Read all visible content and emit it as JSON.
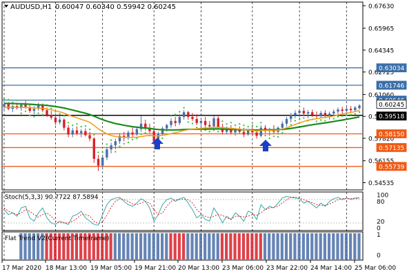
{
  "header": {
    "symbol": "AUDUSD,H1",
    "ohlc": "0.60047 0.60340 0.59942 0.60245"
  },
  "colors": {
    "bull": "#4a6ea8",
    "bear": "#d8202a",
    "ma_fast": "#f0a020",
    "ma_slow": "#1a8a1a",
    "psar": "#3ac83a",
    "level_blue": "#3b6fa8",
    "level_orange": "#f05a14",
    "stoch_main": "#3aa7a7",
    "stoch_signal": "#e02020",
    "arrow": "#1a40c8"
  },
  "price_axis": {
    "ticks": [
      "0.67630",
      "0.65965",
      "0.64345",
      "0.62725",
      "0.61060",
      "0.59440",
      "0.57820",
      "0.56155",
      "0.54535"
    ],
    "tags": [
      {
        "label": "0.63034",
        "kind": "blue"
      },
      {
        "label": "0.61746",
        "kind": "blue"
      },
      {
        "label": "0.60646",
        "kind": "blue"
      },
      {
        "label": "0.60245",
        "kind": "current"
      },
      {
        "label": "0.59518",
        "kind": "black"
      },
      {
        "label": "0.58150",
        "kind": "orange"
      },
      {
        "label": "0.57135",
        "kind": "orange"
      },
      {
        "label": "0.55739",
        "kind": "orange"
      }
    ]
  },
  "stoch_panel": {
    "label": "Stoch(5,3,3) 90.7722 87.5894",
    "ticks": [
      "100",
      "80",
      "20",
      "0"
    ]
  },
  "trend_panel": {
    "label": "Flat Trend V2(Current Timeframe)",
    "ticks": [
      "1",
      "0"
    ]
  },
  "time_axis": {
    "labels": [
      "17 Mar 2020",
      "18 Mar 13:00",
      "19 Mar 05:00",
      "19 Mar 21:00",
      "20 Mar 13:00",
      "23 Mar 06:00",
      "23 Mar 22:00",
      "24 Mar 14:00",
      "25 Mar 06:00"
    ]
  },
  "chart_data": {
    "type": "candlestick",
    "symbol": "AUDUSD",
    "timeframe": "H1",
    "ylim": [
      0.5405,
      0.6785
    ],
    "levels": [
      0.63034,
      0.61746,
      0.60646,
      0.59518,
      0.5815,
      0.57135,
      0.55739
    ],
    "candles": [
      {
        "o": 0.6015,
        "h": 0.6055,
        "l": 0.5995,
        "c": 0.6035
      },
      {
        "o": 0.6035,
        "h": 0.605,
        "l": 0.599,
        "c": 0.6
      },
      {
        "o": 0.6,
        "h": 0.603,
        "l": 0.5975,
        "c": 0.602
      },
      {
        "o": 0.602,
        "h": 0.6045,
        "l": 0.5995,
        "c": 0.6005
      },
      {
        "o": 0.6005,
        "h": 0.604,
        "l": 0.5985,
        "c": 0.603
      },
      {
        "o": 0.603,
        "h": 0.606,
        "l": 0.6,
        "c": 0.601
      },
      {
        "o": 0.601,
        "h": 0.6035,
        "l": 0.597,
        "c": 0.5985
      },
      {
        "o": 0.5985,
        "h": 0.602,
        "l": 0.596,
        "c": 0.6
      },
      {
        "o": 0.6,
        "h": 0.6045,
        "l": 0.5985,
        "c": 0.6025
      },
      {
        "o": 0.6025,
        "h": 0.604,
        "l": 0.5975,
        "c": 0.599
      },
      {
        "o": 0.599,
        "h": 0.601,
        "l": 0.594,
        "c": 0.5955
      },
      {
        "o": 0.5955,
        "h": 0.5985,
        "l": 0.592,
        "c": 0.5935
      },
      {
        "o": 0.5935,
        "h": 0.596,
        "l": 0.588,
        "c": 0.59
      },
      {
        "o": 0.59,
        "h": 0.5945,
        "l": 0.5885,
        "c": 0.592
      },
      {
        "o": 0.592,
        "h": 0.593,
        "l": 0.584,
        "c": 0.586
      },
      {
        "o": 0.586,
        "h": 0.588,
        "l": 0.579,
        "c": 0.581
      },
      {
        "o": 0.581,
        "h": 0.586,
        "l": 0.579,
        "c": 0.584
      },
      {
        "o": 0.584,
        "h": 0.587,
        "l": 0.5805,
        "c": 0.582
      },
      {
        "o": 0.582,
        "h": 0.585,
        "l": 0.579,
        "c": 0.5835
      },
      {
        "o": 0.5835,
        "h": 0.5855,
        "l": 0.5795,
        "c": 0.5805
      },
      {
        "o": 0.5805,
        "h": 0.583,
        "l": 0.576,
        "c": 0.578
      },
      {
        "o": 0.578,
        "h": 0.579,
        "l": 0.56,
        "c": 0.563
      },
      {
        "o": 0.563,
        "h": 0.566,
        "l": 0.554,
        "c": 0.558
      },
      {
        "o": 0.558,
        "h": 0.566,
        "l": 0.555,
        "c": 0.564
      },
      {
        "o": 0.564,
        "h": 0.572,
        "l": 0.562,
        "c": 0.57
      },
      {
        "o": 0.57,
        "h": 0.575,
        "l": 0.567,
        "c": 0.573
      },
      {
        "o": 0.573,
        "h": 0.578,
        "l": 0.57,
        "c": 0.576
      },
      {
        "o": 0.576,
        "h": 0.582,
        "l": 0.574,
        "c": 0.58
      },
      {
        "o": 0.58,
        "h": 0.583,
        "l": 0.576,
        "c": 0.5785
      },
      {
        "o": 0.5785,
        "h": 0.584,
        "l": 0.577,
        "c": 0.5825
      },
      {
        "o": 0.5825,
        "h": 0.586,
        "l": 0.579,
        "c": 0.581
      },
      {
        "o": 0.581,
        "h": 0.587,
        "l": 0.58,
        "c": 0.585
      },
      {
        "o": 0.585,
        "h": 0.595,
        "l": 0.583,
        "c": 0.589
      },
      {
        "o": 0.589,
        "h": 0.592,
        "l": 0.584,
        "c": 0.586
      },
      {
        "o": 0.586,
        "h": 0.589,
        "l": 0.582,
        "c": 0.5835
      },
      {
        "o": 0.5835,
        "h": 0.586,
        "l": 0.573,
        "c": 0.576
      },
      {
        "o": 0.576,
        "h": 0.583,
        "l": 0.575,
        "c": 0.5815
      },
      {
        "o": 0.5815,
        "h": 0.587,
        "l": 0.58,
        "c": 0.5855
      },
      {
        "o": 0.5855,
        "h": 0.589,
        "l": 0.583,
        "c": 0.588
      },
      {
        "o": 0.588,
        "h": 0.593,
        "l": 0.586,
        "c": 0.591
      },
      {
        "o": 0.591,
        "h": 0.594,
        "l": 0.587,
        "c": 0.5895
      },
      {
        "o": 0.5895,
        "h": 0.596,
        "l": 0.588,
        "c": 0.594
      },
      {
        "o": 0.594,
        "h": 0.599,
        "l": 0.592,
        "c": 0.5975
      },
      {
        "o": 0.5975,
        "h": 0.5985,
        "l": 0.592,
        "c": 0.594
      },
      {
        "o": 0.594,
        "h": 0.597,
        "l": 0.591,
        "c": 0.5925
      },
      {
        "o": 0.5925,
        "h": 0.596,
        "l": 0.588,
        "c": 0.5895
      },
      {
        "o": 0.5895,
        "h": 0.593,
        "l": 0.587,
        "c": 0.591
      },
      {
        "o": 0.591,
        "h": 0.594,
        "l": 0.586,
        "c": 0.588
      },
      {
        "o": 0.588,
        "h": 0.591,
        "l": 0.585,
        "c": 0.587
      },
      {
        "o": 0.587,
        "h": 0.595,
        "l": 0.586,
        "c": 0.593
      },
      {
        "o": 0.593,
        "h": 0.5945,
        "l": 0.585,
        "c": 0.5865
      },
      {
        "o": 0.5865,
        "h": 0.589,
        "l": 0.581,
        "c": 0.583
      },
      {
        "o": 0.583,
        "h": 0.587,
        "l": 0.581,
        "c": 0.5855
      },
      {
        "o": 0.5855,
        "h": 0.588,
        "l": 0.581,
        "c": 0.5825
      },
      {
        "o": 0.5825,
        "h": 0.586,
        "l": 0.58,
        "c": 0.5845
      },
      {
        "o": 0.5845,
        "h": 0.587,
        "l": 0.5815,
        "c": 0.583
      },
      {
        "o": 0.583,
        "h": 0.586,
        "l": 0.579,
        "c": 0.581
      },
      {
        "o": 0.581,
        "h": 0.585,
        "l": 0.58,
        "c": 0.584
      },
      {
        "o": 0.584,
        "h": 0.586,
        "l": 0.581,
        "c": 0.5825
      },
      {
        "o": 0.5825,
        "h": 0.585,
        "l": 0.578,
        "c": 0.58
      },
      {
        "o": 0.58,
        "h": 0.588,
        "l": 0.579,
        "c": 0.586
      },
      {
        "o": 0.586,
        "h": 0.588,
        "l": 0.582,
        "c": 0.5835
      },
      {
        "o": 0.5835,
        "h": 0.586,
        "l": 0.58,
        "c": 0.5845
      },
      {
        "o": 0.5845,
        "h": 0.588,
        "l": 0.5815,
        "c": 0.583
      },
      {
        "o": 0.583,
        "h": 0.587,
        "l": 0.581,
        "c": 0.586
      },
      {
        "o": 0.586,
        "h": 0.591,
        "l": 0.584,
        "c": 0.589
      },
      {
        "o": 0.589,
        "h": 0.594,
        "l": 0.587,
        "c": 0.5925
      },
      {
        "o": 0.5925,
        "h": 0.597,
        "l": 0.59,
        "c": 0.5955
      },
      {
        "o": 0.5955,
        "h": 0.599,
        "l": 0.593,
        "c": 0.597
      },
      {
        "o": 0.597,
        "h": 0.6,
        "l": 0.594,
        "c": 0.5985
      },
      {
        "o": 0.5985,
        "h": 0.601,
        "l": 0.595,
        "c": 0.5965
      },
      {
        "o": 0.5965,
        "h": 0.599,
        "l": 0.593,
        "c": 0.5975
      },
      {
        "o": 0.5975,
        "h": 0.5995,
        "l": 0.594,
        "c": 0.5955
      },
      {
        "o": 0.5955,
        "h": 0.598,
        "l": 0.5925,
        "c": 0.5945
      },
      {
        "o": 0.5945,
        "h": 0.5985,
        "l": 0.5935,
        "c": 0.597
      },
      {
        "o": 0.597,
        "h": 0.599,
        "l": 0.593,
        "c": 0.595
      },
      {
        "o": 0.595,
        "h": 0.598,
        "l": 0.592,
        "c": 0.5965
      },
      {
        "o": 0.5965,
        "h": 0.5995,
        "l": 0.5945,
        "c": 0.598
      },
      {
        "o": 0.598,
        "h": 0.601,
        "l": 0.596,
        "c": 0.5995
      },
      {
        "o": 0.5995,
        "h": 0.6015,
        "l": 0.5965,
        "c": 0.5985
      },
      {
        "o": 0.5985,
        "h": 0.601,
        "l": 0.597,
        "c": 0.6
      },
      {
        "o": 0.6,
        "h": 0.602,
        "l": 0.5975,
        "c": 0.599
      },
      {
        "o": 0.599,
        "h": 0.602,
        "l": 0.598,
        "c": 0.601
      },
      {
        "o": 0.6005,
        "h": 0.6034,
        "l": 0.5994,
        "c": 0.60245
      }
    ],
    "ma_fast": [
      0.601,
      0.6012,
      0.6012,
      0.6011,
      0.6011,
      0.6012,
      0.6009,
      0.6006,
      0.6006,
      0.6004,
      0.5999,
      0.5993,
      0.5985,
      0.5978,
      0.5968,
      0.5955,
      0.5944,
      0.5933,
      0.5922,
      0.5912,
      0.59,
      0.5878,
      0.5852,
      0.5832,
      0.5815,
      0.5803,
      0.5795,
      0.5791,
      0.5789,
      0.5789,
      0.5788,
      0.579,
      0.5795,
      0.58,
      0.5803,
      0.58,
      0.58,
      0.5804,
      0.5809,
      0.5817,
      0.5822,
      0.583,
      0.584,
      0.5846,
      0.585,
      0.5852,
      0.5856,
      0.5858,
      0.5859,
      0.5864,
      0.5864,
      0.586,
      0.5859,
      0.5855,
      0.5853,
      0.585,
      0.5845,
      0.5844,
      0.5841,
      0.5836,
      0.584,
      0.584,
      0.5841,
      0.584,
      0.5843,
      0.585,
      0.586,
      0.5872,
      0.5884,
      0.5897,
      0.5906,
      0.5916,
      0.5922,
      0.5927,
      0.5933,
      0.5936,
      0.5941,
      0.5947,
      0.5955,
      0.5961,
      0.5968,
      0.5973,
      0.598,
      0.5988
    ],
    "ma_slow": [
      0.604,
      0.604,
      0.6039,
      0.6038,
      0.6037,
      0.6036,
      0.6034,
      0.6032,
      0.603,
      0.6028,
      0.6025,
      0.6021,
      0.6017,
      0.6012,
      0.6006,
      0.5999,
      0.5991,
      0.5983,
      0.5975,
      0.5967,
      0.5958,
      0.5946,
      0.5932,
      0.592,
      0.5909,
      0.59,
      0.5891,
      0.5885,
      0.5878,
      0.5873,
      0.5868,
      0.5864,
      0.5861,
      0.5858,
      0.5855,
      0.585,
      0.5847,
      0.5845,
      0.5844,
      0.5844,
      0.5844,
      0.5845,
      0.5847,
      0.5848,
      0.5849,
      0.5849,
      0.585,
      0.585,
      0.585,
      0.5851,
      0.5851,
      0.585,
      0.5849,
      0.5848,
      0.5847,
      0.5846,
      0.5845,
      0.5845,
      0.5844,
      0.5843,
      0.5844,
      0.5844,
      0.5845,
      0.5845,
      0.5846,
      0.5848,
      0.5851,
      0.5855,
      0.586,
      0.5866,
      0.5871,
      0.5877,
      0.5882,
      0.5887,
      0.5892,
      0.5896,
      0.5901,
      0.5906,
      0.5912,
      0.5917,
      0.5923,
      0.5928,
      0.5934,
      0.594
    ],
    "stoch_main": [
      55,
      40,
      45,
      35,
      60,
      65,
      30,
      20,
      45,
      60,
      30,
      15,
      10,
      20,
      15,
      10,
      35,
      40,
      50,
      30,
      20,
      10,
      8,
      40,
      70,
      85,
      90,
      92,
      80,
      70,
      65,
      75,
      88,
      80,
      60,
      20,
      40,
      70,
      85,
      90,
      80,
      88,
      92,
      75,
      55,
      30,
      40,
      25,
      20,
      60,
      40,
      15,
      35,
      25,
      45,
      35,
      20,
      50,
      45,
      25,
      70,
      55,
      65,
      60,
      75,
      90,
      95,
      92,
      90,
      88,
      75,
      80,
      70,
      60,
      75,
      65,
      80,
      88,
      92,
      85,
      90,
      86,
      90,
      91
    ],
    "stoch_signal": [
      60,
      50,
      45,
      40,
      45,
      55,
      50,
      40,
      32,
      40,
      45,
      35,
      20,
      15,
      15,
      15,
      20,
      28,
      40,
      40,
      35,
      20,
      12,
      18,
      38,
      62,
      80,
      88,
      85,
      80,
      72,
      70,
      75,
      80,
      75,
      55,
      40,
      45,
      65,
      80,
      85,
      85,
      87,
      85,
      75,
      55,
      42,
      35,
      30,
      35,
      40,
      38,
      30,
      25,
      35,
      35,
      33,
      35,
      40,
      38,
      45,
      55,
      60,
      62,
      65,
      75,
      85,
      92,
      93,
      90,
      85,
      80,
      76,
      70,
      68,
      68,
      72,
      78,
      85,
      88,
      89,
      88,
      88,
      88
    ],
    "trend": [
      2,
      2,
      2,
      2,
      1,
      1,
      1,
      1,
      1,
      1,
      0,
      0,
      0,
      0,
      0,
      0,
      0,
      0,
      0,
      0,
      0,
      0,
      0,
      0,
      0,
      0,
      1,
      1,
      1,
      1,
      1,
      1,
      1,
      1,
      1,
      1,
      1,
      1,
      1,
      0,
      0,
      0,
      0,
      1,
      1,
      1,
      1,
      1,
      1,
      1,
      1,
      0,
      0,
      0,
      0,
      0,
      0,
      0,
      0,
      0,
      0,
      1,
      1,
      1,
      1,
      1,
      1,
      1,
      1,
      1,
      1,
      1,
      1,
      1,
      1,
      1,
      1,
      1,
      1,
      1,
      1,
      1,
      1,
      1
    ]
  }
}
